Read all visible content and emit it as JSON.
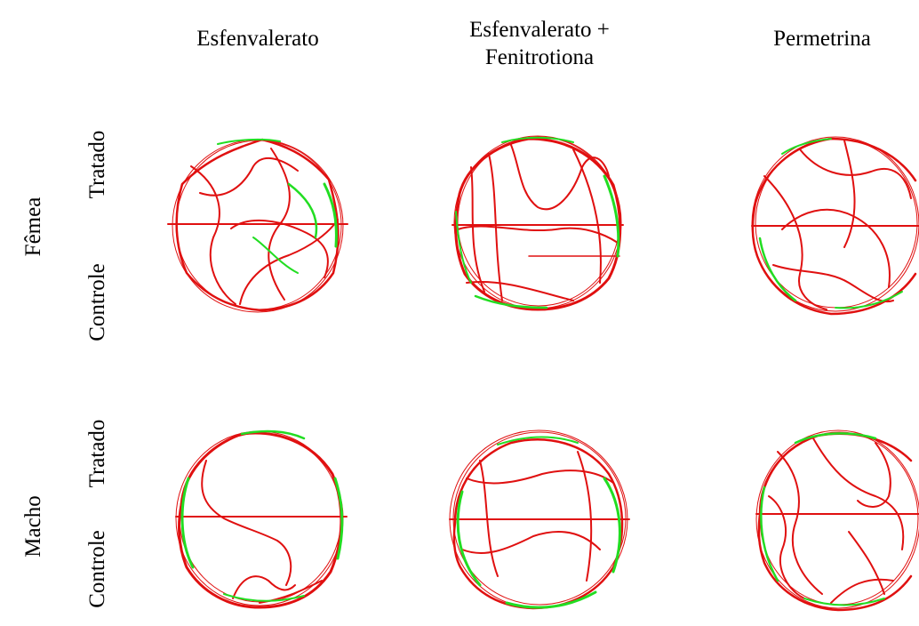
{
  "columns": [
    {
      "line1": "",
      "line2": "Esfenvalerato"
    },
    {
      "line1": "Esfenvalerato +",
      "line2": "Fenitrotiona"
    },
    {
      "line1": "",
      "line2": "Permetrina"
    }
  ],
  "rows": [
    {
      "sex": "Fêmea",
      "treated": "Tratado",
      "control": "Controle"
    },
    {
      "sex": "Macho",
      "treated": "Tratado",
      "control": "Controle"
    }
  ],
  "colors": {
    "path": "#e01010",
    "path_highlight": "#22dd22",
    "border": "#e01010"
  }
}
